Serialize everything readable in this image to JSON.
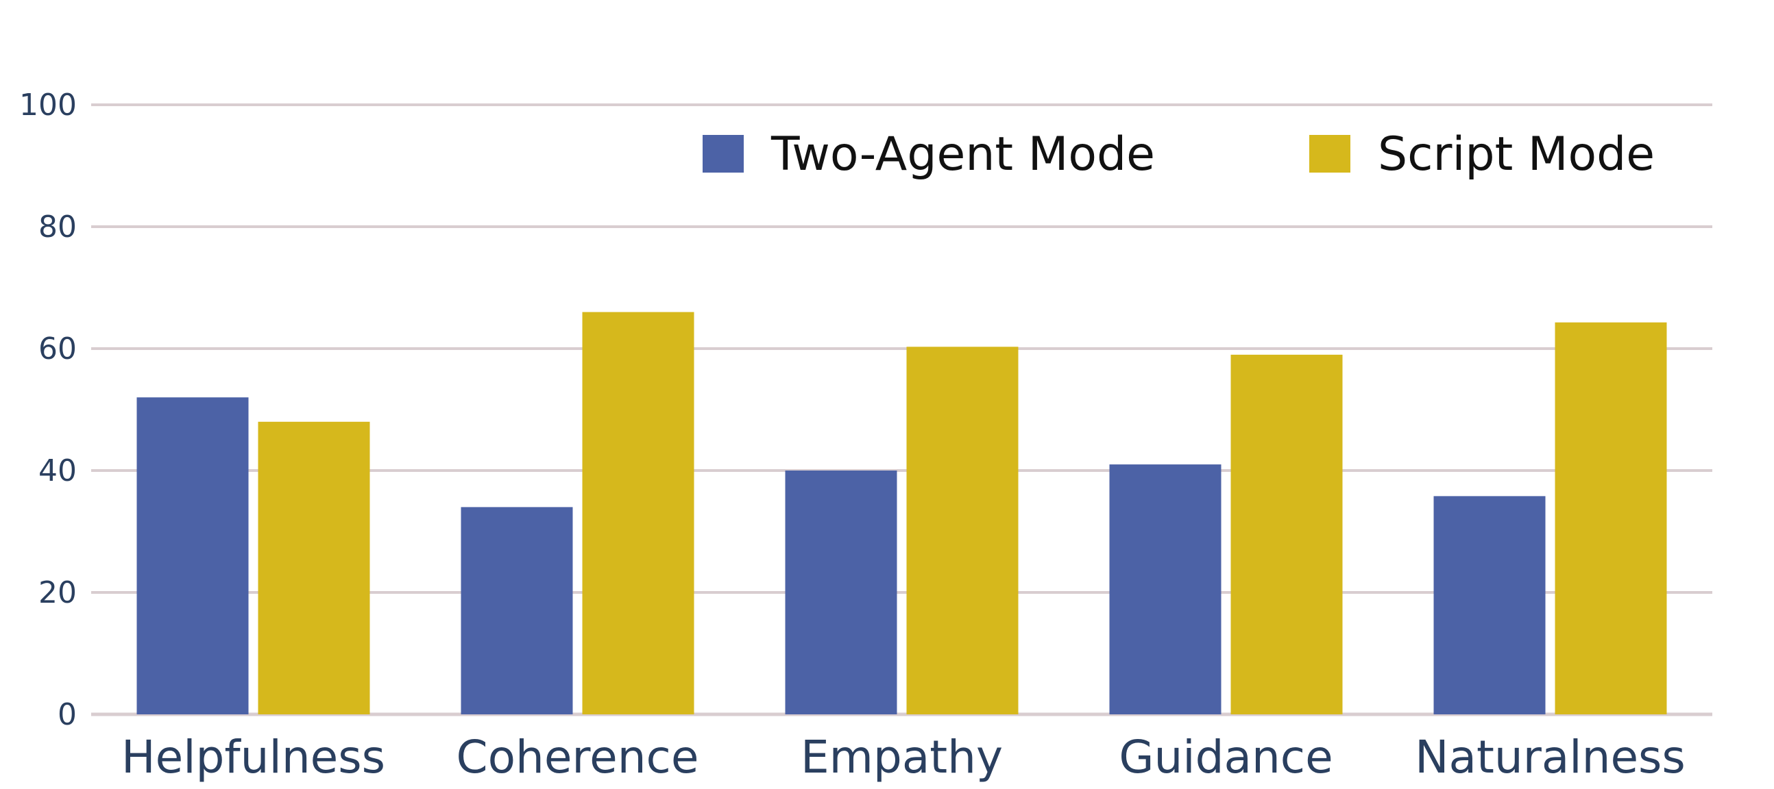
{
  "chart_data": {
    "type": "bar",
    "categories": [
      "Helpfulness",
      "Coherence",
      "Empathy",
      "Guidance",
      "Naturalness"
    ],
    "series": [
      {
        "name": "Two-Agent Mode",
        "values": [
          52,
          34,
          40,
          41,
          35.8
        ],
        "color": "#4c62a6"
      },
      {
        "name": "Script Mode",
        "values": [
          48,
          66,
          60.3,
          59,
          64.3
        ],
        "color": "#d6b81c"
      }
    ],
    "ylim": [
      0,
      100
    ],
    "yticks": [
      0,
      20,
      40,
      60,
      80,
      100
    ],
    "grid": true,
    "legend_position": "top-right",
    "gridline_color": "#d9cdd0",
    "axis_text_color": "#2a3f5f"
  }
}
